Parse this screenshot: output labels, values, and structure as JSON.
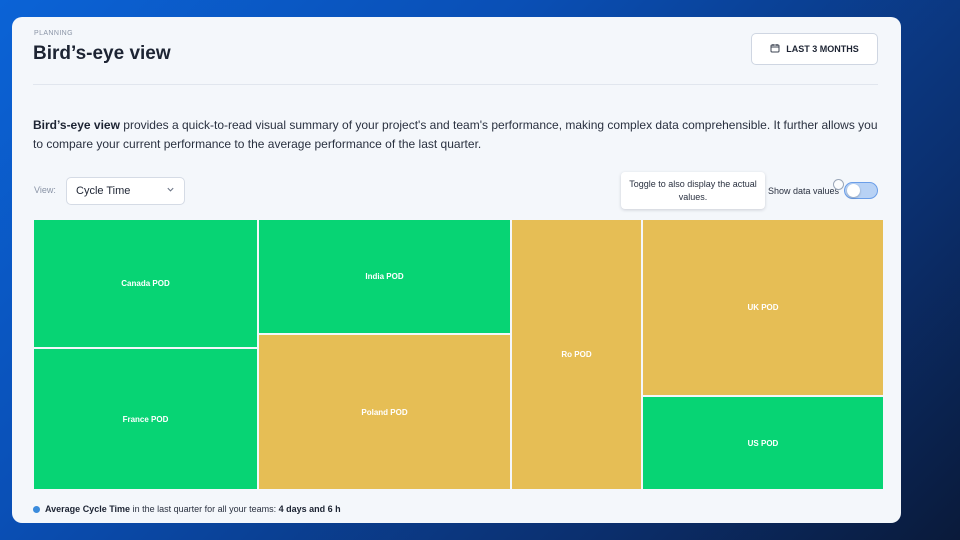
{
  "header": {
    "eyebrow": "PLANNING",
    "title": "Bird’s-eye view",
    "range_button": {
      "label": "LAST 3 MONTHS",
      "icon": "calendar-icon"
    }
  },
  "intro": {
    "lead": "Bird’s-eye view",
    "body": " provides a quick-to-read visual summary of your project's and team's performance, making complex data comprehensible. It further allows you to compare your current performance to the average performance of the last quarter."
  },
  "controls": {
    "view_label": "View:",
    "view_value": "Cycle Time",
    "tooltip": "Toggle to also display the actual values.",
    "toggle_label": "Show data values",
    "toggle_on": false
  },
  "colors": {
    "good": "#07d474",
    "warning": "#e6be55",
    "accent": "#3a8bdc"
  },
  "treemap": {
    "tiles": [
      {
        "label": "Canada POD",
        "status": "good"
      },
      {
        "label": "France POD",
        "status": "good"
      },
      {
        "label": "India POD",
        "status": "good"
      },
      {
        "label": "Poland POD",
        "status": "warning"
      },
      {
        "label": "Ro POD",
        "status": "warning"
      },
      {
        "label": "UK POD",
        "status": "warning"
      },
      {
        "label": "US POD",
        "status": "good"
      }
    ]
  },
  "legend": {
    "metric": "Average Cycle Time",
    "text": " in the last quarter for all your teams: ",
    "value": "4 days and 6 h"
  }
}
